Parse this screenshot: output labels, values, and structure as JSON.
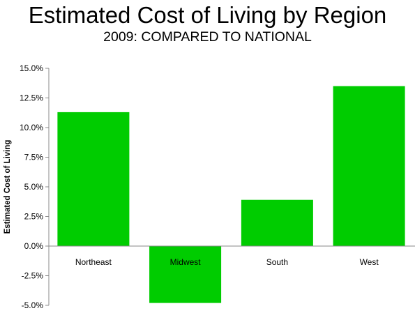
{
  "chart_data": {
    "type": "bar",
    "title": "Estimated Cost of Living by Region",
    "subtitle": "2009: COMPARED TO NATIONAL",
    "xlabel": "",
    "ylabel": "Estimated Cost of Living",
    "categories": [
      "Northeast",
      "Midwest",
      "South",
      "West"
    ],
    "values": [
      11.3,
      -4.8,
      3.9,
      13.5
    ],
    "ylim": [
      -5.0,
      15.0
    ],
    "yticks": [
      15.0,
      12.5,
      10.0,
      7.5,
      5.0,
      2.5,
      0.0,
      -2.5,
      -5.0
    ],
    "ytick_labels": [
      "15.0%",
      "12.5%",
      "10.0%",
      "7.5%",
      "5.0%",
      "2.5%",
      "0.0%",
      "-2.5%",
      "-5.0%"
    ],
    "grid": false,
    "legend": "none",
    "bar_color": "#00cc00"
  }
}
